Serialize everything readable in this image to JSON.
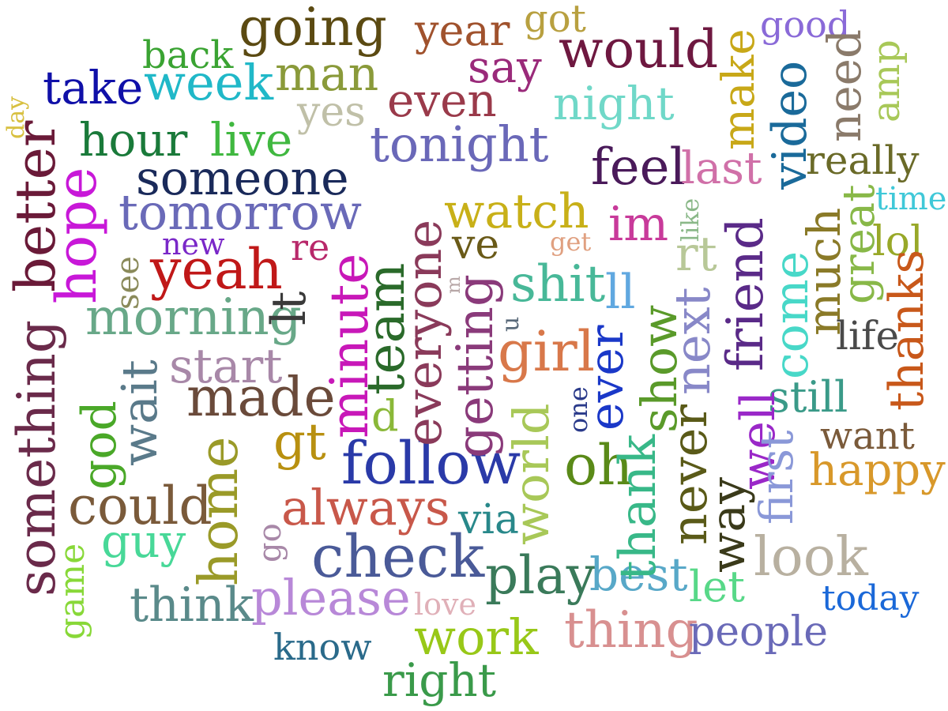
{
  "words": [
    {
      "text": "going",
      "color": "#5b4a12"
    },
    {
      "text": "year",
      "color": "#a0522d"
    },
    {
      "text": "got",
      "color": "#b8a040"
    },
    {
      "text": "good",
      "color": "#8a6ad8"
    },
    {
      "text": "back",
      "color": "#3aa332"
    },
    {
      "text": "would",
      "color": "#6e1840"
    },
    {
      "text": "say",
      "color": "#9a2a7a"
    },
    {
      "text": "take",
      "color": "#1010a8"
    },
    {
      "text": "week",
      "color": "#20b8c8"
    },
    {
      "text": "man",
      "color": "#8a9a3a"
    },
    {
      "text": "day",
      "color": "#d8c040"
    },
    {
      "text": "even",
      "color": "#9a3a4a"
    },
    {
      "text": "night",
      "color": "#70d8c8"
    },
    {
      "text": "yes",
      "color": "#c0c0a8"
    },
    {
      "text": "hour",
      "color": "#1a7a3a"
    },
    {
      "text": "live",
      "color": "#40b840"
    },
    {
      "text": "tonight",
      "color": "#6a68b8"
    },
    {
      "text": "feel",
      "color": "#4a1a5a"
    },
    {
      "text": "last",
      "color": "#d070a8"
    },
    {
      "text": "really",
      "color": "#6a6a28"
    },
    {
      "text": "someone",
      "color": "#1a2a5a"
    },
    {
      "text": "tomorrow",
      "color": "#6a6ab8"
    },
    {
      "text": "watch",
      "color": "#c8b018"
    },
    {
      "text": "im",
      "color": "#c83a9a"
    },
    {
      "text": "time",
      "color": "#40c8d8"
    },
    {
      "text": "new",
      "color": "#7a28c8"
    },
    {
      "text": "re",
      "color": "#b8286a"
    },
    {
      "text": "ve",
      "color": "#6a5a18"
    },
    {
      "text": "get",
      "color": "#e0a080"
    },
    {
      "text": "rt",
      "color": "#b8c898"
    },
    {
      "text": "lol",
      "color": "#98a828"
    },
    {
      "text": "yeah",
      "color": "#c01818"
    },
    {
      "text": "shit",
      "color": "#48b898"
    },
    {
      "text": "ll",
      "color": "#60a8e0"
    },
    {
      "text": "morning",
      "color": "#68a888"
    },
    {
      "text": "life",
      "color": "#4a4a4a"
    },
    {
      "text": "girl",
      "color": "#d8784a"
    },
    {
      "text": "start",
      "color": "#a888a8"
    },
    {
      "text": "made",
      "color": "#6a4a3a"
    },
    {
      "text": "d",
      "color": "#8ab838"
    },
    {
      "text": "still",
      "color": "#3a9a88"
    },
    {
      "text": "want",
      "color": "#7a5a3a"
    },
    {
      "text": "gt",
      "color": "#b89010"
    },
    {
      "text": "follow",
      "color": "#2a3aa8"
    },
    {
      "text": "oh",
      "color": "#5a8a18"
    },
    {
      "text": "happy",
      "color": "#d8982a"
    },
    {
      "text": "could",
      "color": "#7a5a3a"
    },
    {
      "text": "always",
      "color": "#c8584a"
    },
    {
      "text": "via",
      "color": "#28888a"
    },
    {
      "text": "guy",
      "color": "#48d898"
    },
    {
      "text": "check",
      "color": "#4a5a98"
    },
    {
      "text": "play",
      "color": "#3a7a5a"
    },
    {
      "text": "best",
      "color": "#58a8c8"
    },
    {
      "text": "let",
      "color": "#58d888"
    },
    {
      "text": "look",
      "color": "#b8b0a0"
    },
    {
      "text": "think",
      "color": "#5a8a8a"
    },
    {
      "text": "please",
      "color": "#b888d8"
    },
    {
      "text": "love",
      "color": "#e0b0b8"
    },
    {
      "text": "today",
      "color": "#1a68d8"
    },
    {
      "text": "thing",
      "color": "#d89090"
    },
    {
      "text": "people",
      "color": "#6a6ab8"
    },
    {
      "text": "know",
      "color": "#2a6a8a"
    },
    {
      "text": "work",
      "color": "#98c818"
    },
    {
      "text": "right",
      "color": "#3a9a4a"
    },
    {
      "text": "something",
      "color": "#6a2a4a"
    },
    {
      "text": "better",
      "color": "#6a1a38"
    },
    {
      "text": "hope",
      "color": "#c818d8"
    },
    {
      "text": "see",
      "color": "#8a8a5a"
    },
    {
      "text": "god",
      "color": "#4aa828"
    },
    {
      "text": "wait",
      "color": "#5a7a8a"
    },
    {
      "text": "game",
      "color": "#88d838"
    },
    {
      "text": "home",
      "color": "#9a9a28"
    },
    {
      "text": "go",
      "color": "#a888a8"
    },
    {
      "text": "minute",
      "color": "#c818b8"
    },
    {
      "text": "lt",
      "color": "#3a3a3a"
    },
    {
      "text": "team",
      "color": "#2a6a2a"
    },
    {
      "text": "everyone",
      "color": "#8a3a5a"
    },
    {
      "text": "getting",
      "color": "#8a3a7a"
    },
    {
      "text": "u",
      "color": "#5a6a7a"
    },
    {
      "text": "m",
      "color": "#b8a8a8"
    },
    {
      "text": "world",
      "color": "#a8c858"
    },
    {
      "text": "one",
      "color": "#2a3a8a"
    },
    {
      "text": "ever",
      "color": "#1a38c8"
    },
    {
      "text": "thank",
      "color": "#38b888"
    },
    {
      "text": "show",
      "color": "#5a9a2a"
    },
    {
      "text": "next",
      "color": "#8888c8"
    },
    {
      "text": "never",
      "color": "#5a5a18"
    },
    {
      "text": "like",
      "color": "#8ab888"
    },
    {
      "text": "well",
      "color": "#9a28c8"
    },
    {
      "text": "friend",
      "color": "#5a2a88"
    },
    {
      "text": "way",
      "color": "#3a3a1a"
    },
    {
      "text": "first",
      "color": "#8a98d8"
    },
    {
      "text": "come",
      "color": "#48d8c8"
    },
    {
      "text": "much",
      "color": "#8a7a28"
    },
    {
      "text": "great",
      "color": "#88b848"
    },
    {
      "text": "thanks",
      "color": "#c8581a"
    },
    {
      "text": "make",
      "color": "#c8a818"
    },
    {
      "text": "video",
      "color": "#1a6a9a"
    },
    {
      "text": "need",
      "color": "#8a7a6a"
    },
    {
      "text": "amp",
      "color": "#a8c858"
    }
  ]
}
